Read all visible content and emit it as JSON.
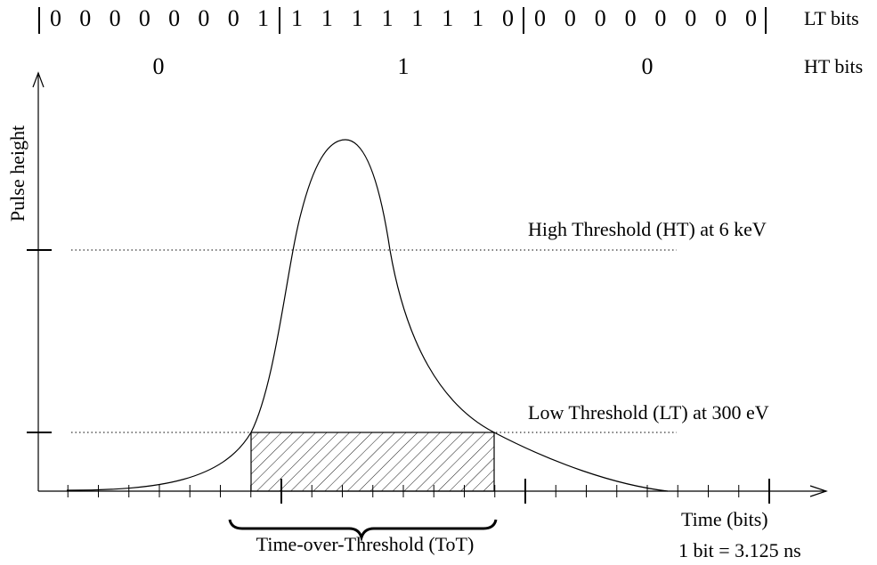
{
  "lt_bits": {
    "groups": [
      "0 0 0 0 0 0 0 1",
      "1 1 1 1 1 1 1 0",
      "0 0 0 0 0 0 0 0"
    ],
    "label": "LT bits"
  },
  "ht_bits": {
    "values": [
      "0",
      "1",
      "0"
    ],
    "label": "HT bits"
  },
  "axes": {
    "y_label": "Pulse height",
    "x_label": "Time (bits)",
    "note": "1 bit = 3.125 ns"
  },
  "thresholds": [
    {
      "label": "High Threshold (HT) at 6 keV"
    },
    {
      "label": "Low Threshold (LT) at 300 eV"
    }
  ],
  "tot_label": "Time-over-Threshold (ToT)"
}
